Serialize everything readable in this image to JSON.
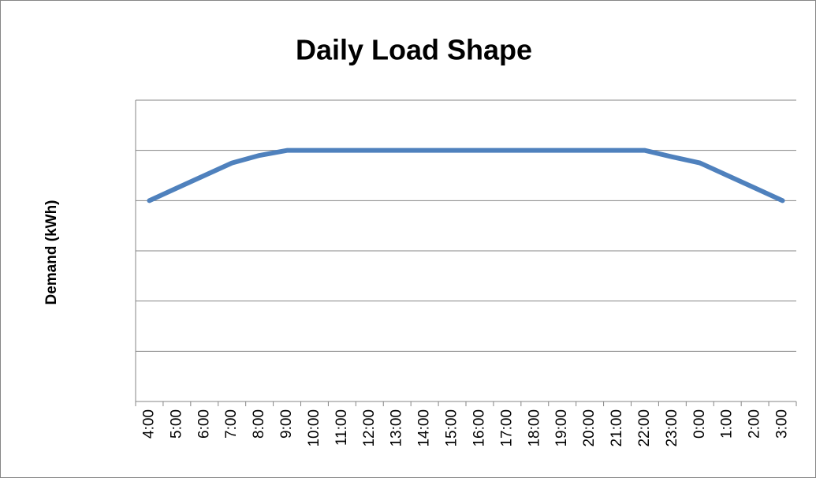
{
  "chart_data": {
    "type": "line",
    "title": "Daily Load Shape",
    "y_label": "Demand  (kWh)",
    "categories": [
      "4:00",
      "5:00",
      "6:00",
      "7:00",
      "8:00",
      "9:00",
      "10:00",
      "11:00",
      "12:00",
      "13:00",
      "14:00",
      "15:00",
      "16:00",
      "17:00",
      "18:00",
      "19:00",
      "20:00",
      "21:00",
      "22:00",
      "23:00",
      "0:00",
      "1:00",
      "2:00",
      "3:00"
    ],
    "series": [
      {
        "name": "Demand",
        "color": "#4f81bd",
        "values": [
          4,
          4.25,
          4.5,
          4.75,
          4.9,
          5,
          5,
          5,
          5,
          5,
          5,
          5,
          5,
          5,
          5,
          5,
          5,
          5,
          5,
          4.87,
          4.75,
          4.5,
          4.25,
          4
        ]
      }
    ],
    "ylim": [
      0,
      6
    ],
    "yticks": [
      0,
      1,
      2,
      3,
      4,
      5,
      6
    ],
    "grid": true,
    "legend": false
  }
}
